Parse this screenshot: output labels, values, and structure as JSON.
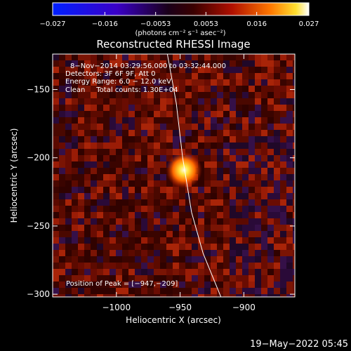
{
  "chart_data": {
    "type": "heatmap",
    "title": "Reconstructed RHESSI Image",
    "xlabel": "Heliocentric X (arcsec)",
    "ylabel": "Heliocentric Y (arcsec)",
    "xlim": [
      -1050,
      -860
    ],
    "ylim": [
      -302,
      -124
    ],
    "x_ticks": [
      -1000,
      -950,
      -900
    ],
    "y_ticks": [
      -150,
      -200,
      -250,
      -300
    ],
    "x_tick_labels": [
      "−1000",
      "−950",
      "−900"
    ],
    "y_tick_labels": [
      "−150",
      "−200",
      "−250",
      "−300"
    ],
    "colorbar": {
      "min": -0.027,
      "max": 0.027,
      "ticks": [
        -0.027,
        -0.016,
        -0.0053,
        0.0053,
        0.016,
        0.027
      ],
      "tick_labels": [
        "−0.027",
        "−0.016",
        "−0.0053",
        "0.0053",
        "0.016",
        "0.027"
      ],
      "unit_label": "(photons cm⁻² s⁻¹ asec⁻²)"
    },
    "annotations": [
      "8−Nov−2014 03:29:56.000 to 03:32:44.000",
      "Detectors: 3F 6F 9F, Att 0",
      "Energy Range: 6.0 − 12.0 keV",
      "Clean     Total counts: 1.30E+04"
    ],
    "peak_label": "Position of Peak = [−947,−209]",
    "peak": {
      "x": -947,
      "y": -209,
      "value": 0.027
    },
    "limb_curve": [
      [
        -960,
        -124
      ],
      [
        -953,
        -160
      ],
      [
        -948,
        -200
      ],
      [
        -941,
        -240
      ],
      [
        -932,
        -270
      ],
      [
        -918,
        -302
      ]
    ],
    "grid": false
  },
  "footer": {
    "timestamp": "19−May−2022 05:45"
  }
}
